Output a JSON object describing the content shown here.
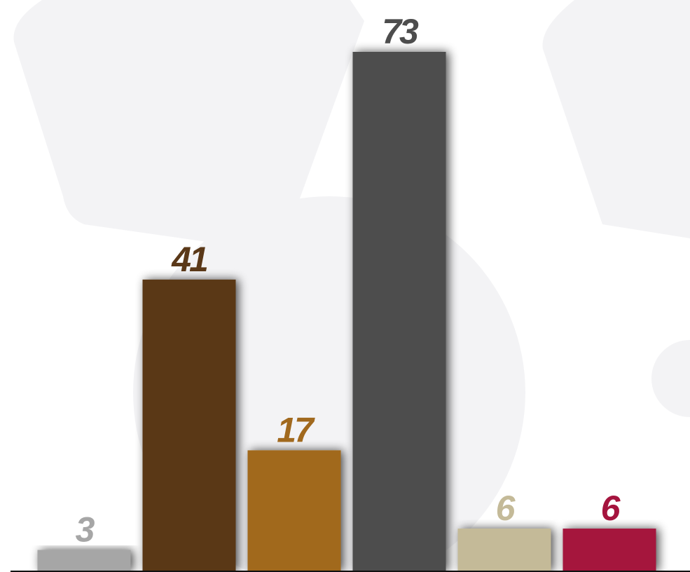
{
  "chart_data": {
    "type": "bar",
    "values": [
      3,
      41,
      17,
      73,
      6,
      6
    ],
    "colors": [
      "#a6a6a6",
      "#5a3818",
      "#a1691e",
      "#4d4d4d",
      "#c4ba98",
      "#a5143e"
    ]
  }
}
